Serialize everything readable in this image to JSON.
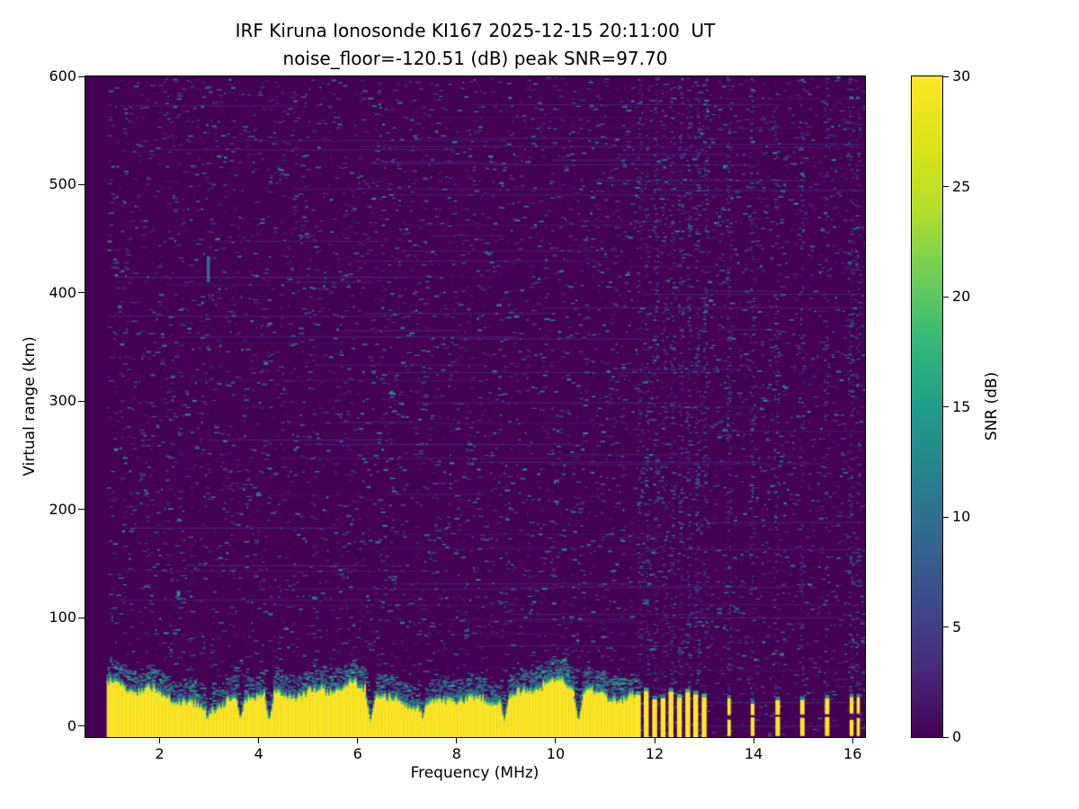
{
  "chart_data": {
    "type": "heatmap",
    "title": "IRF Kiruna Ionosonde KI167 2025-12-15 20:11:00  UT",
    "subtitle": "noise_floor=-120.51 (dB) peak SNR=97.70",
    "xlabel": "Frequency (MHz)",
    "ylabel": "Virtual range (km)",
    "xlim": [
      0.5,
      16.25
    ],
    "ylim": [
      -10,
      600
    ],
    "xticks": [
      2,
      4,
      6,
      8,
      10,
      12,
      14,
      16
    ],
    "yticks": [
      0,
      100,
      200,
      300,
      400,
      500,
      600
    ],
    "grid": false,
    "colorbar": {
      "label": "SNR (dB)",
      "vmin": 0,
      "vmax": 30,
      "ticks": [
        0,
        5,
        10,
        15,
        20,
        25,
        30
      ]
    },
    "colormap": {
      "name": "viridis",
      "stops": [
        [
          0.0,
          "#440154"
        ],
        [
          0.1,
          "#482878"
        ],
        [
          0.2,
          "#3e4989"
        ],
        [
          0.3,
          "#31688e"
        ],
        [
          0.4,
          "#26828e"
        ],
        [
          0.5,
          "#1f9e89"
        ],
        [
          0.6,
          "#35b779"
        ],
        [
          0.7,
          "#6ece58"
        ],
        [
          0.8,
          "#b5de2b"
        ],
        [
          0.9,
          "#dde318"
        ],
        [
          1.0,
          "#fde725"
        ]
      ]
    },
    "features": {
      "background_snr_db": 0,
      "noise_speckle_snr_db_range": [
        2,
        14
      ],
      "ground_clutter_band": {
        "freq_start_mhz": 0.93,
        "freq_end_mhz": 11.62,
        "range_bottom_km": -10,
        "top_edge_km_min": 22,
        "top_edge_km_max": 45,
        "snr_db": 30,
        "notch_freqs_mhz": [
          2.95,
          3.62,
          4.2,
          6.25,
          7.3,
          8.95,
          10.45
        ]
      },
      "pulsed_band_segments_mhz": [
        [
          11.62,
          11.72
        ],
        [
          11.78,
          11.88
        ],
        [
          11.95,
          12.05
        ],
        [
          12.12,
          12.22
        ],
        [
          12.28,
          12.38
        ],
        [
          12.45,
          12.55
        ],
        [
          12.62,
          12.72
        ],
        [
          12.78,
          12.88
        ],
        [
          12.95,
          13.05
        ]
      ],
      "isolated_marks_mhz": [
        13.47,
        13.94,
        14.44,
        14.94,
        15.44,
        15.94,
        16.08
      ],
      "interference_column_freqs_mhz": [
        11.67,
        11.83,
        12.0,
        12.17,
        12.33,
        12.5,
        12.67,
        12.83,
        13.0,
        13.47,
        13.94,
        14.44,
        14.94,
        15.44,
        15.94,
        16.08
      ],
      "artifacts": [
        {
          "f_mhz": 2.35,
          "km": 120,
          "h_km": 5,
          "snr_db": 15
        },
        {
          "f_mhz": 2.95,
          "km": 410,
          "h_km": 24,
          "snr_db": 10
        }
      ]
    }
  }
}
